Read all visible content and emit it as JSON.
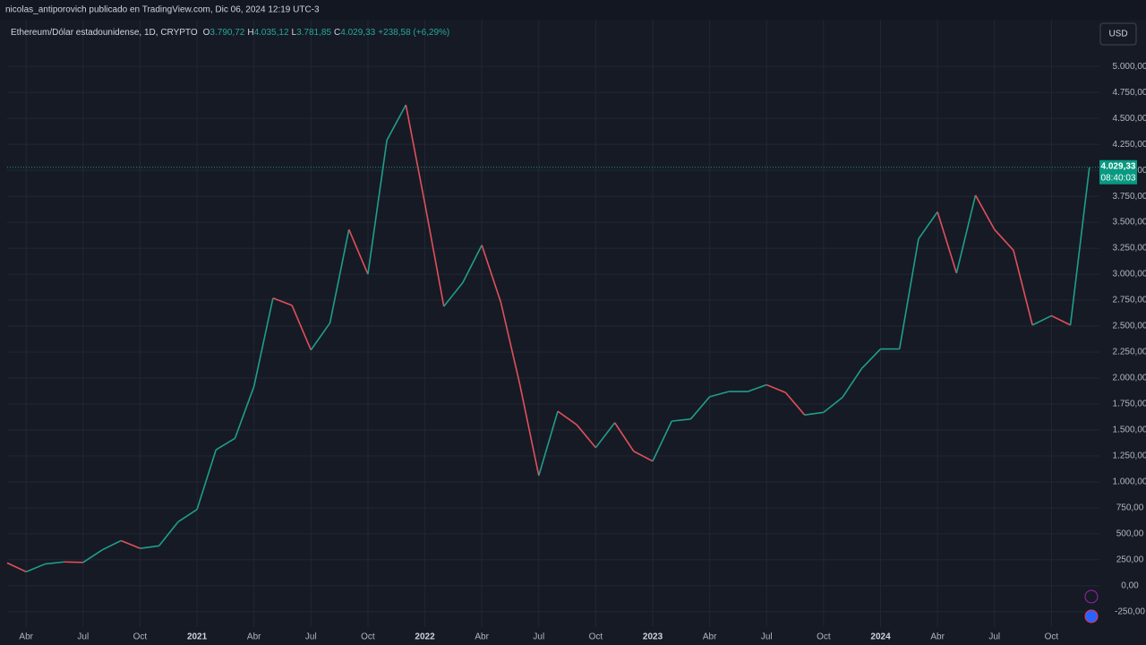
{
  "chart_data": {
    "type": "line",
    "attribution": "nicolas_antiporovich publicado en TradingView.com, Dic 06, 2024 12:19 UTC-3",
    "currency": "USD",
    "ohlc": [
      {
        "key": "O",
        "value": "3.790,72"
      },
      {
        "key": "H",
        "value": "4.035,12"
      },
      {
        "key": "L",
        "value": "3.781,85"
      },
      {
        "key": "C",
        "value": "4.029,33"
      }
    ],
    "change": "+238,58 (+6,29%)",
    "last_price": {
      "value": 4029.33,
      "label": "4.029,33"
    },
    "countdown": "08:40:03",
    "x": [
      "2020-03",
      "2020-04",
      "2020-05",
      "2020-06",
      "2020-07",
      "2020-08",
      "2020-09",
      "2020-10",
      "2020-11",
      "2020-12",
      "2021-01",
      "2021-02",
      "2021-03",
      "2021-04",
      "2021-05",
      "2021-06",
      "2021-07",
      "2021-08",
      "2021-09",
      "2021-10",
      "2021-11",
      "2021-12",
      "2022-01",
      "2022-02",
      "2022-03",
      "2022-04",
      "2022-05",
      "2022-06",
      "2022-07",
      "2022-08",
      "2022-09",
      "2022-10",
      "2022-11",
      "2022-12",
      "2023-01",
      "2023-02",
      "2023-03",
      "2023-04",
      "2023-05",
      "2023-06",
      "2023-07",
      "2023-08",
      "2023-09",
      "2023-10",
      "2023-11",
      "2023-12",
      "2024-01",
      "2024-02",
      "2024-03",
      "2024-04",
      "2024-05",
      "2024-06",
      "2024-07",
      "2024-08",
      "2024-09",
      "2024-10",
      "2024-11",
      "2024-12"
    ],
    "series": [
      {
        "name": "Ethereum/Dólar estadounidense, 1D, CRYPTO",
        "up_color": "#1f9e8a",
        "down_color": "#e0505a",
        "values": [
          220,
          135,
          210,
          230,
          225,
          345,
          435,
          360,
          385,
          615,
          735,
          1310,
          1420,
          1920,
          2770,
          2700,
          2270,
          2530,
          3430,
          3000,
          4290,
          4630,
          3680,
          2690,
          2920,
          3280,
          2730,
          1940,
          1060,
          1680,
          1550,
          1330,
          1570,
          1295,
          1200,
          1585,
          1605,
          1820,
          1870,
          1870,
          1935,
          1860,
          1645,
          1670,
          1815,
          2090,
          2280,
          2280,
          3340,
          3600,
          3010,
          3760,
          3430,
          3230,
          2510,
          2600,
          2510,
          4029.33
        ]
      }
    ],
    "xlim": [
      "2020-03",
      "2025-01"
    ],
    "xticks": [
      {
        "value": "2020-04",
        "label": "Abr"
      },
      {
        "value": "2020-07",
        "label": "Jul"
      },
      {
        "value": "2020-10",
        "label": "Oct"
      },
      {
        "value": "2021-01",
        "label": "2021"
      },
      {
        "value": "2021-04",
        "label": "Abr"
      },
      {
        "value": "2021-07",
        "label": "Jul"
      },
      {
        "value": "2021-10",
        "label": "Oct"
      },
      {
        "value": "2022-01",
        "label": "2022"
      },
      {
        "value": "2022-04",
        "label": "Abr"
      },
      {
        "value": "2022-07",
        "label": "Jul"
      },
      {
        "value": "2022-10",
        "label": "Oct"
      },
      {
        "value": "2023-01",
        "label": "2023"
      },
      {
        "value": "2023-04",
        "label": "Abr"
      },
      {
        "value": "2023-07",
        "label": "Jul"
      },
      {
        "value": "2023-10",
        "label": "Oct"
      },
      {
        "value": "2024-01",
        "label": "2024"
      },
      {
        "value": "2024-04",
        "label": "Abr"
      },
      {
        "value": "2024-07",
        "label": "Jul"
      },
      {
        "value": "2024-10",
        "label": "Oct"
      }
    ],
    "ylim": [
      -570,
      5450
    ],
    "yticks": [
      {
        "value": -250,
        "label": "-250,00"
      },
      {
        "value": 0,
        "label": "0,00"
      },
      {
        "value": 250,
        "label": "250,00"
      },
      {
        "value": 500,
        "label": "500,00"
      },
      {
        "value": 750,
        "label": "750,00"
      },
      {
        "value": 1000,
        "label": "1.000,00"
      },
      {
        "value": 1250,
        "label": "1.250,00"
      },
      {
        "value": 1500,
        "label": "1.500,00"
      },
      {
        "value": 1750,
        "label": "1.750,00"
      },
      {
        "value": 2000,
        "label": "2.000,00"
      },
      {
        "value": 2250,
        "label": "2.250,00"
      },
      {
        "value": 2500,
        "label": "2.500,00"
      },
      {
        "value": 2750,
        "label": "2.750,00"
      },
      {
        "value": 3000,
        "label": "3.000,00"
      },
      {
        "value": 3250,
        "label": "3.250,00"
      },
      {
        "value": 3500,
        "label": "3.500,00"
      },
      {
        "value": 3750,
        "label": "3.750,00"
      },
      {
        "value": 4000,
        "label": "4.000,00"
      },
      {
        "value": 4250,
        "label": "4.250,00"
      },
      {
        "value": 4500,
        "label": "4.500,00"
      },
      {
        "value": 4750,
        "label": "4.750,00"
      },
      {
        "value": 5000,
        "label": "5.000,00"
      }
    ],
    "grid": true
  }
}
